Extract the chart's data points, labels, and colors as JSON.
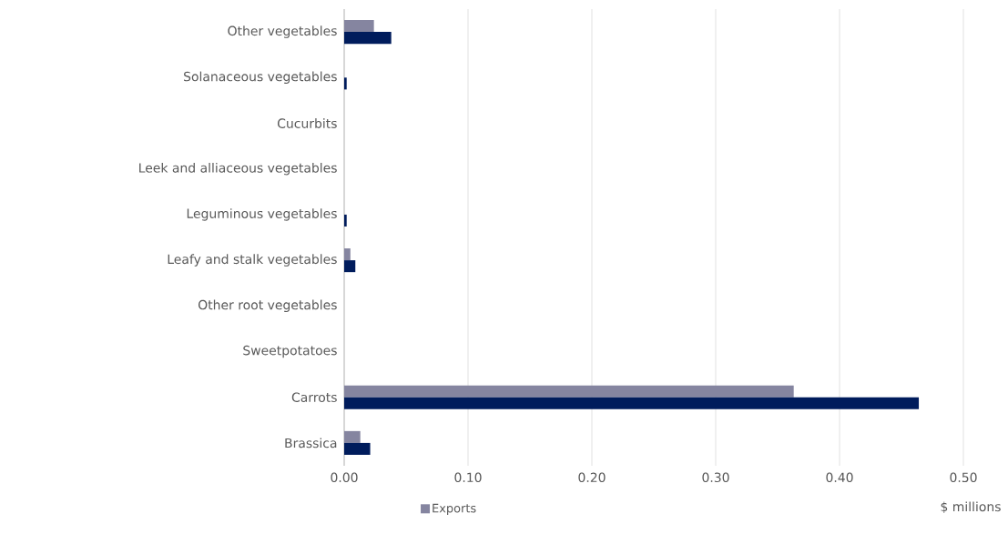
{
  "chart_data": {
    "type": "bar",
    "orientation": "horizontal",
    "categories": [
      "Other vegetables",
      "Solanaceous vegetables",
      "Cucurbits",
      "Leek and alliaceous vegetables",
      "Leguminous vegetables",
      "Leafy and stalk vegetables",
      "Other root vegetables",
      "Sweetpotatoes",
      "Carrots",
      "Brassica"
    ],
    "series": [
      {
        "name": "Exports",
        "color": "#8585a0",
        "values": [
          0.024,
          0,
          0,
          0,
          0,
          0.005,
          0,
          0,
          0.363,
          0.013
        ]
      },
      {
        "color": "#001c5c",
        "values": [
          0.038,
          0.002,
          0,
          0,
          0.002,
          0.009,
          0,
          0,
          0.464,
          0.021
        ]
      }
    ],
    "xlabel": "$ millions",
    "xlim": [
      0,
      0.5
    ],
    "xticks": [
      {
        "value": 0,
        "label": "0.00"
      },
      {
        "value": 0.1,
        "label": "0.10"
      },
      {
        "value": 0.2,
        "label": "0.20"
      },
      {
        "value": 0.3,
        "label": "0.30"
      },
      {
        "value": 0.4,
        "label": "0.40"
      },
      {
        "value": 0.5,
        "label": "0.50"
      }
    ],
    "grid": "x",
    "legend": "bottom"
  }
}
